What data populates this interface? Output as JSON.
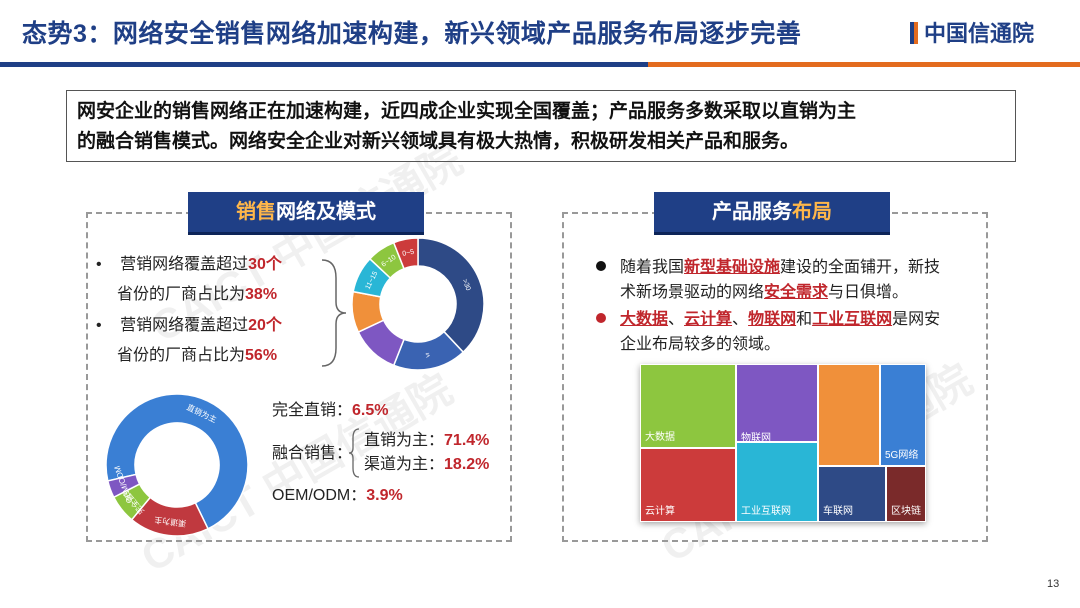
{
  "header": {
    "title": "态势3：网络安全销售网络加速构建，新兴领域产品服务布局逐步完善",
    "logo_text": "中国信通院"
  },
  "summary": {
    "line1": "网安企业的销售网络正在加速构建，近四成企业实现全国覆盖；产品服务多数采取以直销为主",
    "line2": "的融合销售模式。网络安全企业对新兴领域具有极大热情，积极研发相关产品和服务。"
  },
  "left_panel": {
    "title_a": "销售",
    "title_b": "网络及模式",
    "bullet1_pre": "营销网络覆盖超过",
    "bullet1_num": "30个",
    "bullet1_l2_pre": "省份的厂商占比为",
    "bullet1_pct": "38%",
    "bullet2_pre": "营销网络覆盖超过",
    "bullet2_num": "20个",
    "bullet2_l2_pre": "省份的厂商占比为",
    "bullet2_pct": "56%",
    "modes": {
      "direct_label": "完全直销：",
      "direct_val": "6.5%",
      "hybrid_label": "融合销售：",
      "hybrid_direct_label": "直销为主：",
      "hybrid_direct_val": "71.4%",
      "hybrid_channel_label": "渠道为主：",
      "hybrid_channel_val": "18.2%",
      "oem_label": "OEM/ODM：",
      "oem_val": "3.9%"
    }
  },
  "right_panel": {
    "title_a": "产品服务",
    "title_b": "布局",
    "b1_p1": "随着我国",
    "b1_k1": "新型基础设施",
    "b1_p2": "建设的全面铺开，新技",
    "b1_l2_p1": "术新场景驱动的网络",
    "b1_l2_k": "安全需求",
    "b1_l2_p2": "与日俱增。",
    "b2_k1": "大数据",
    "b2_s1": "、",
    "b2_k2": "云计算",
    "b2_s2": "、",
    "b2_k3": "物联网",
    "b2_s3": "和",
    "b2_k4": "工业互联网",
    "b2_p": "是网安",
    "b2_l2": "企业布局较多的领域。"
  },
  "colors": {
    "primary": "#1f3f86",
    "accent": "#e36b1e",
    "highlight": "#c0262c"
  },
  "chart_data": [
    {
      "type": "pie",
      "labels": [
        ">30",
        "≤",
        "",
        "",
        "11~15",
        "6~10",
        "0~5"
      ],
      "values": [
        38,
        18,
        12,
        10,
        9,
        7,
        6
      ],
      "colors": [
        "#2e4a86",
        "#3a63b2",
        "#7e57c2",
        "#f0903a",
        "#29b6d6",
        "#8dc63f",
        "#cc3b3b"
      ],
      "donut": true
    },
    {
      "type": "pie",
      "labels": [
        "直销为主",
        "渠道为主",
        "完全直销",
        "OEM/ODM"
      ],
      "values": [
        71.4,
        18.2,
        6.5,
        3.9
      ],
      "colors": [
        "#3a7fd4",
        "#c0393f",
        "#8dc63f",
        "#7e57c2"
      ],
      "donut": true
    },
    {
      "type": "treemap",
      "labels": [
        "大数据",
        "云计算",
        "物联网",
        "工业互联网",
        "",
        "5G网络",
        "车联网",
        "区块链"
      ],
      "colors": [
        "#8dc63f",
        "#cc3b3b",
        "#7e57c2",
        "#29b6d6",
        "#f0903a",
        "#3a7fd4",
        "#2e4a86",
        "#7a2a2a"
      ]
    }
  ]
}
